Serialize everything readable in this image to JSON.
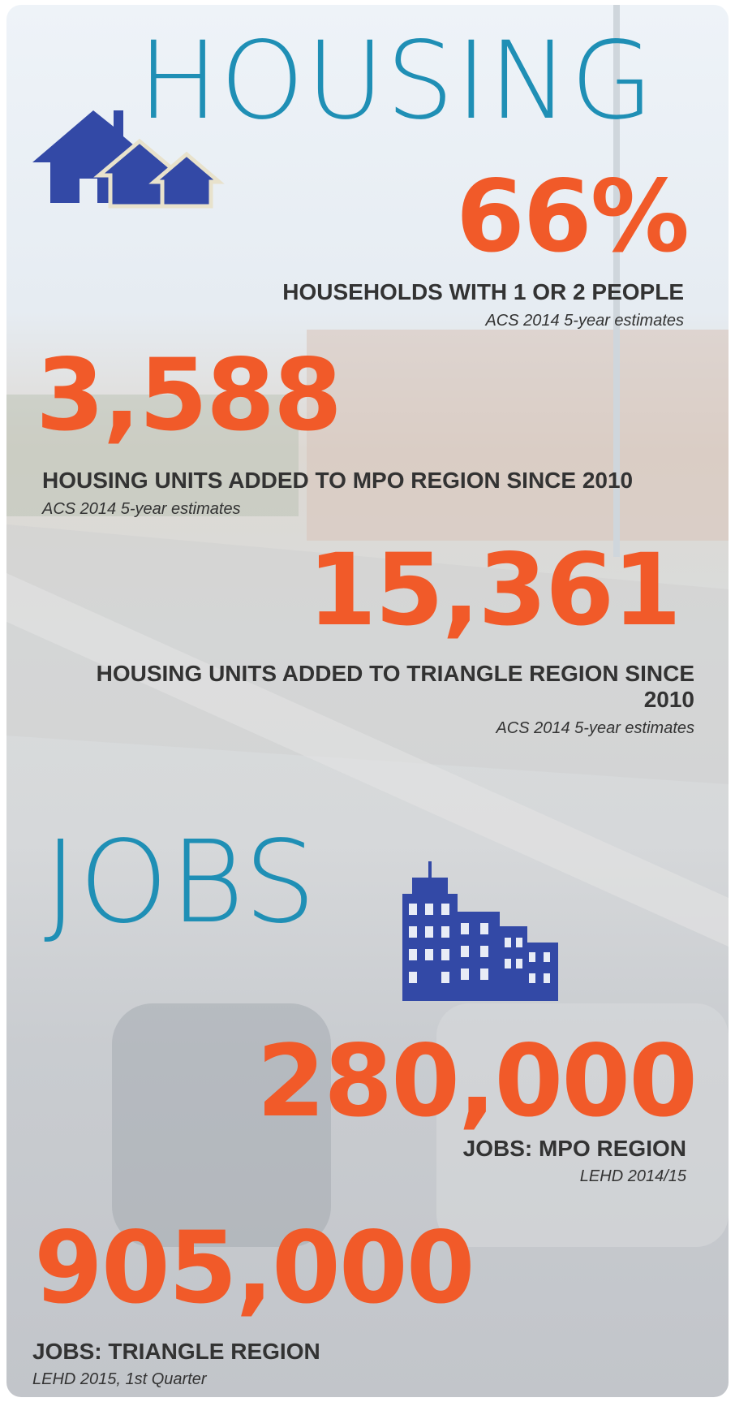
{
  "housing": {
    "title": "HOUSING",
    "stats": [
      {
        "value": "66%",
        "label": "HOUSEHOLDS WITH 1 OR 2 PEOPLE",
        "source": "ACS  2014 5-year estimates"
      },
      {
        "value": "3,588",
        "label": "HOUSING UNITS ADDED TO MPO REGION SINCE 2010",
        "source": "ACS  2014 5-year estimates"
      },
      {
        "value": "15,361",
        "label": "HOUSING UNITS ADDED TO TRIANGLE REGION SINCE 2010",
        "source": "ACS  2014 5-year estimates"
      }
    ]
  },
  "jobs": {
    "title": "JOBS",
    "stats": [
      {
        "value": "280,000",
        "label": "JOBS: MPO REGION",
        "source": "LEHD  2014/15"
      },
      {
        "value": "905,000",
        "label": "JOBS: TRIANGLE REGION",
        "source": "LEHD  2015, 1st Quarter"
      }
    ]
  }
}
